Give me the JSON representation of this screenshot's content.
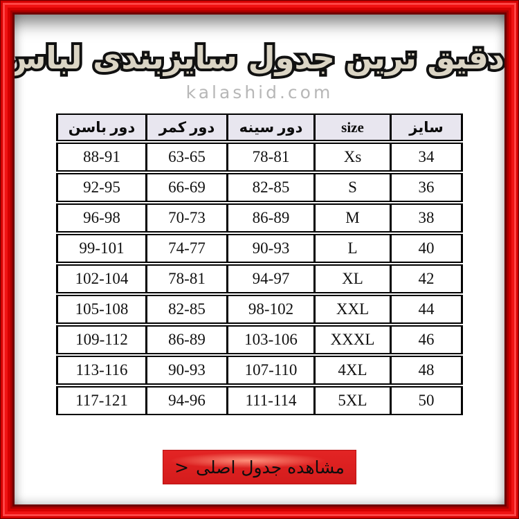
{
  "title": {
    "text": "دقیق ترین جدول سایزبندی لباس"
  },
  "watermark": {
    "text": "kalashid.com"
  },
  "table": {
    "columns": [
      "سایز",
      "size",
      "دور سینه",
      "دور کمر",
      "دور باسن"
    ],
    "rows": [
      [
        "34",
        "Xs",
        "78-81",
        "63-65",
        "88-91"
      ],
      [
        "36",
        "S",
        "82-85",
        "66-69",
        "92-95"
      ],
      [
        "38",
        "M",
        "86-89",
        "70-73",
        "96-98"
      ],
      [
        "40",
        "L",
        "90-93",
        "74-77",
        "99-101"
      ],
      [
        "42",
        "XL",
        "94-97",
        "78-81",
        "102-104"
      ],
      [
        "44",
        "XXL",
        "98-102",
        "82-85",
        "105-108"
      ],
      [
        "46",
        "XXXL",
        "103-106",
        "86-89",
        "109-112"
      ],
      [
        "48",
        "4XL",
        "107-110",
        "90-93",
        "113-116"
      ],
      [
        "50",
        "5XL",
        "111-114",
        "94-96",
        "117-121"
      ]
    ]
  },
  "button": {
    "label": "مشاهده جدول اصلی",
    "chevron": ">"
  },
  "colors": {
    "frame_red": "#ee0f0f",
    "button_red": "#e32424",
    "header_bg": "#e8e6ef",
    "watermark_gray": "#b7b7b7",
    "title_fill": "#dbd5c5"
  }
}
